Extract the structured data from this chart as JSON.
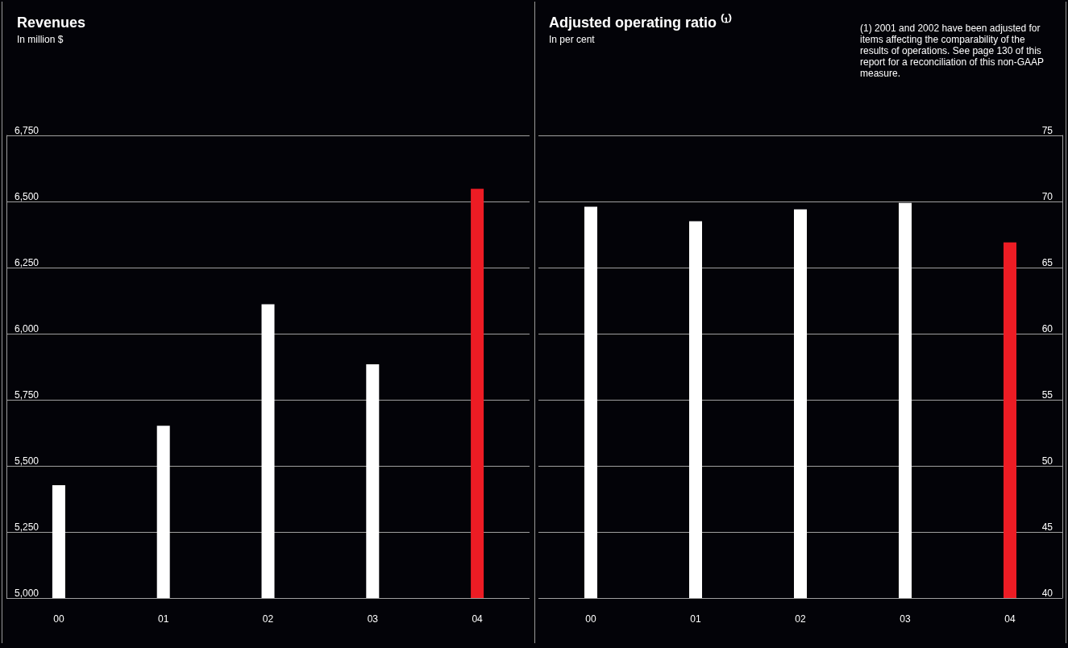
{
  "chart_data": [
    {
      "type": "bar",
      "title": "Revenues",
      "subtitle": "In million $",
      "categories": [
        "00",
        "01",
        "02",
        "03",
        "04"
      ],
      "values": [
        5427,
        5652,
        6111,
        5884,
        6548
      ],
      "colors": [
        "#ffffff",
        "#ffffff",
        "#ffffff",
        "#ffffff",
        "#ed1c24"
      ],
      "ylim": [
        5000,
        6750
      ],
      "yticks": [
        {
          "value": 5000,
          "label": "5,000"
        },
        {
          "value": 5250,
          "label": "5,250"
        },
        {
          "value": 5500,
          "label": "5,500"
        },
        {
          "value": 5750,
          "label": "5,750"
        },
        {
          "value": 6000,
          "label": "6,000"
        },
        {
          "value": 6250,
          "label": "6,250"
        },
        {
          "value": 6500,
          "label": "6,500"
        },
        {
          "value": 6750,
          "label": "6,750"
        }
      ],
      "grid": true
    },
    {
      "type": "bar",
      "title": "Adjusted operating ratio ⁽¹⁾",
      "subtitle": "In per cent",
      "annotations": [
        "(1) 2001 and 2002 have been adjusted for items affecting the comparability of the results of operations. See page 130 of this report for a reconciliation of this non-GAAP measure."
      ],
      "categories": [
        "00",
        "01",
        "02",
        "03",
        "04"
      ],
      "values": [
        69.6,
        68.5,
        69.4,
        69.9,
        66.9
      ],
      "colors": [
        "#ffffff",
        "#ffffff",
        "#ffffff",
        "#ffffff",
        "#ed1c24"
      ],
      "ylim": [
        40,
        75
      ],
      "yticks": [
        40,
        45,
        50,
        55,
        60,
        65,
        70,
        75
      ],
      "grid": true
    }
  ]
}
